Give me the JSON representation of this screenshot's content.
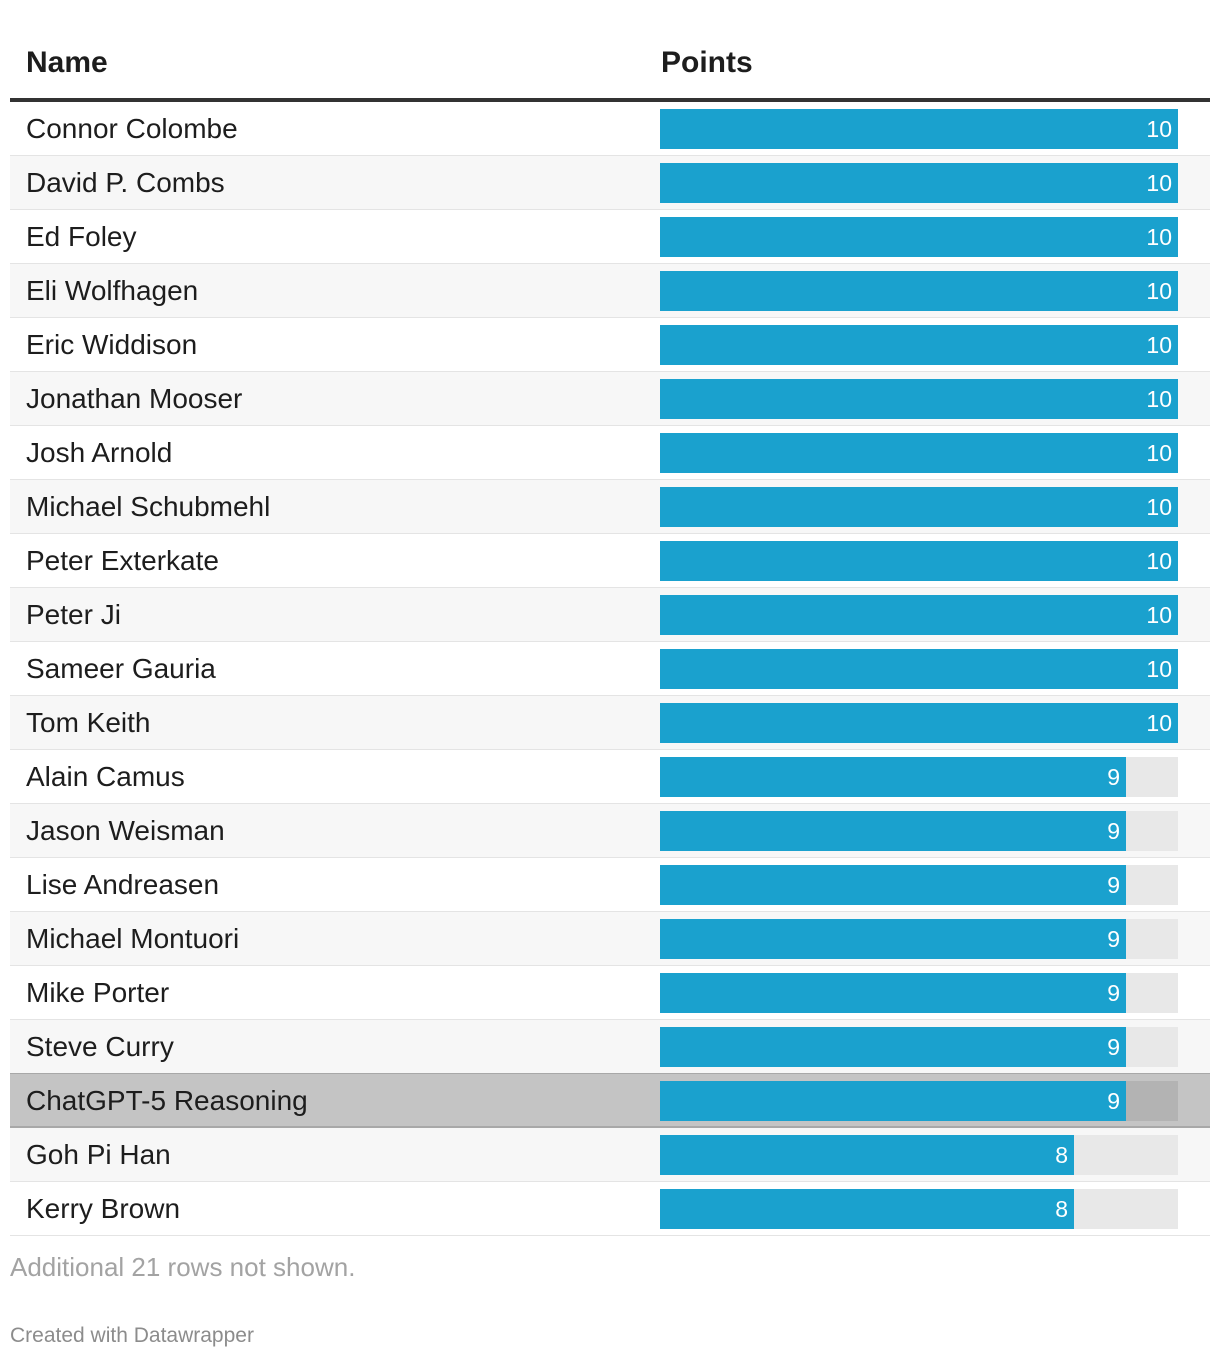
{
  "table": {
    "header": {
      "name": "Name",
      "points": "Points"
    }
  },
  "chart_data": {
    "type": "table",
    "columns": [
      "Name",
      "Points"
    ],
    "max_value": 10,
    "bar_color": "#1aa1ce",
    "track_color": "#e8e8e8",
    "highlight_color": "#c4c4c4",
    "rows": [
      {
        "name": "Connor Colombe",
        "points": 10
      },
      {
        "name": "David P. Combs",
        "points": 10
      },
      {
        "name": "Ed Foley",
        "points": 10
      },
      {
        "name": "Eli Wolfhagen",
        "points": 10
      },
      {
        "name": "Eric Widdison",
        "points": 10
      },
      {
        "name": "Jonathan Mooser",
        "points": 10
      },
      {
        "name": "Josh Arnold",
        "points": 10
      },
      {
        "name": "Michael Schubmehl",
        "points": 10
      },
      {
        "name": "Peter Exterkate",
        "points": 10
      },
      {
        "name": "Peter Ji",
        "points": 10
      },
      {
        "name": "Sameer Gauria",
        "points": 10
      },
      {
        "name": "Tom Keith",
        "points": 10
      },
      {
        "name": "Alain Camus",
        "points": 9
      },
      {
        "name": "Jason Weisman",
        "points": 9
      },
      {
        "name": "Lise Andreasen",
        "points": 9
      },
      {
        "name": "Michael Montuori",
        "points": 9
      },
      {
        "name": "Mike Porter",
        "points": 9
      },
      {
        "name": "Steve Curry",
        "points": 9
      },
      {
        "name": "ChatGPT-5 Reasoning",
        "points": 9,
        "highlighted": true
      },
      {
        "name": "Goh Pi Han",
        "points": 8
      },
      {
        "name": "Kerry Brown",
        "points": 8
      }
    ]
  },
  "footer": {
    "note": "Additional 21 rows not shown.",
    "credit": "Created with Datawrapper"
  }
}
